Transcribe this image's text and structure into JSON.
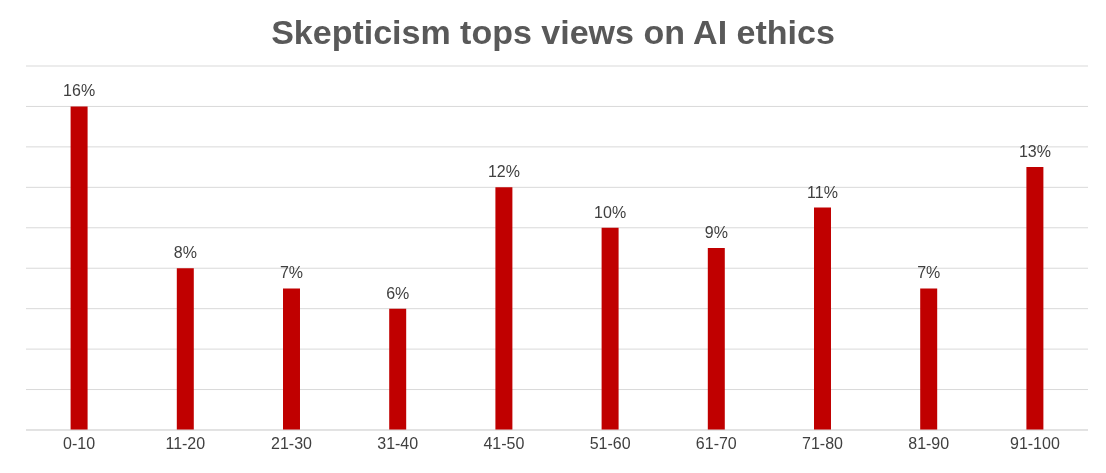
{
  "chart_data": {
    "type": "bar",
    "title": "Skepticism tops views on AI ethics",
    "categories": [
      "0-10",
      "11-20",
      "21-30",
      "31-40",
      "41-50",
      "51-60",
      "61-70",
      "71-80",
      "81-90",
      "91-100"
    ],
    "values": [
      16,
      8,
      7,
      6,
      12,
      10,
      9,
      11,
      7,
      13
    ],
    "value_labels": [
      "16%",
      "8%",
      "7%",
      "6%",
      "12%",
      "10%",
      "9%",
      "11%",
      "7%",
      "13%"
    ],
    "color": "#c00000",
    "ylim": [
      0,
      18
    ],
    "yticks": [
      {
        "value": 0,
        "label": null
      },
      {
        "value": 2,
        "label": null
      },
      {
        "value": 4,
        "label": null
      },
      {
        "value": 6,
        "label": null
      },
      {
        "value": 8,
        "label": null
      },
      {
        "value": 10,
        "label": null
      },
      {
        "value": 12,
        "label": null
      },
      {
        "value": 14,
        "label": null
      },
      {
        "value": 16,
        "label": null
      },
      {
        "value": 18,
        "label": null
      }
    ],
    "grid": "y",
    "tick_labels": "x"
  }
}
